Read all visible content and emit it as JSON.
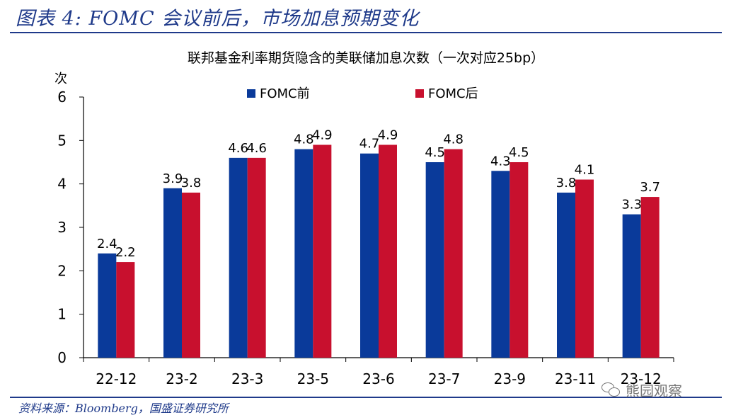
{
  "figure": {
    "title": "图表 4:  FOMC 会议前后，市场加息预期变化",
    "source": "资料来源：Bloomberg，国盛证券研究所",
    "watermark": "熊园观察",
    "watermark_icon": "wechat-icon"
  },
  "colors": {
    "series_before": "#0a3a9a",
    "series_after": "#c8102e",
    "title_blue": "#1f3a8a",
    "axis": "#000000"
  },
  "chart_data": {
    "type": "bar",
    "title": "联邦基金利率期货隐含的美联储加息次数（一次对应25bp）",
    "ylabel": "次",
    "xlabel": "",
    "ylim": [
      0,
      6
    ],
    "yticks": [
      0,
      1,
      2,
      3,
      4,
      5,
      6
    ],
    "grid": false,
    "legend_position": "top",
    "categories": [
      "22-12",
      "23-2",
      "23-3",
      "23-5",
      "23-6",
      "23-7",
      "23-9",
      "23-11",
      "23-12"
    ],
    "series": [
      {
        "name": "FOMC前",
        "values": [
          2.4,
          3.9,
          4.6,
          4.8,
          4.7,
          4.5,
          4.3,
          3.8,
          3.3
        ]
      },
      {
        "name": "FOMC后",
        "values": [
          2.2,
          3.8,
          4.6,
          4.9,
          4.9,
          4.8,
          4.5,
          4.1,
          3.7
        ]
      }
    ]
  }
}
